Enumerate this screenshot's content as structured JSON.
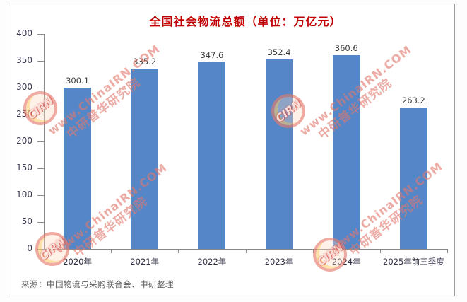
{
  "chart_data": {
    "type": "bar",
    "title": "全国社会物流总额（单位：万亿元）",
    "categories": [
      "2020年",
      "2021年",
      "2022年",
      "2023年",
      "2024年",
      "2025年前三季度"
    ],
    "values": [
      300.1,
      335.2,
      347.6,
      352.4,
      360.6,
      263.2
    ],
    "ylim": [
      0,
      400
    ],
    "ytick_step": 50,
    "grid": false,
    "legend": "none",
    "bar_color": "#5587C8",
    "title_color": "#C00000"
  },
  "source_note": "来源：中国物流与采购联合会、中研整理",
  "watermark": {
    "line1": "www.ChinaIRN.COM",
    "line2": "中研普华研究院",
    "stamp_text": "CIRN",
    "color": "#E0786C"
  }
}
